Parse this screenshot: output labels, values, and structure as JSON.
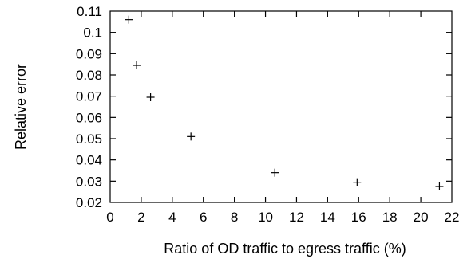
{
  "chart_data": {
    "type": "scatter",
    "title": "",
    "xlabel": "Ratio of OD traffic to egress traffic (%)",
    "ylabel": "Relative error",
    "xlim": [
      0,
      22
    ],
    "ylim": [
      0.02,
      0.11
    ],
    "xticks": [
      0,
      2,
      4,
      6,
      8,
      10,
      12,
      14,
      16,
      18,
      20,
      22
    ],
    "yticks": [
      0.02,
      0.03,
      0.04,
      0.05,
      0.06,
      0.07,
      0.08,
      0.09,
      0.1,
      0.11
    ],
    "grid": false,
    "marker": "+",
    "series": [
      {
        "points": [
          {
            "x": 1.2,
            "y": 0.106
          },
          {
            "x": 1.7,
            "y": 0.0845
          },
          {
            "x": 2.6,
            "y": 0.0695
          },
          {
            "x": 5.2,
            "y": 0.051
          },
          {
            "x": 10.6,
            "y": 0.034
          },
          {
            "x": 15.9,
            "y": 0.0295
          },
          {
            "x": 21.2,
            "y": 0.0275
          }
        ]
      }
    ]
  }
}
